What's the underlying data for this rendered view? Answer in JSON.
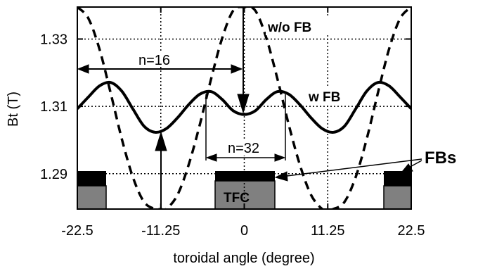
{
  "chart_data": {
    "type": "line",
    "xlabel": "toroidal angle (degree)",
    "ylabel": "Bt (T)",
    "xlim": [
      -22.5,
      22.5
    ],
    "ylim": [
      1.2795,
      1.3395
    ],
    "x_ticks": [
      -22.5,
      -11.25,
      0,
      11.25,
      22.5
    ],
    "x_tick_labels": [
      "-22.5",
      "-11.25",
      "0",
      "11.25",
      "22.5"
    ],
    "y_ticks": [
      1.29,
      1.31,
      1.33
    ],
    "y_tick_labels": [
      "1.29",
      "1.31",
      "1.33"
    ],
    "grid": true,
    "series": [
      {
        "name": "w/o FB",
        "style": "dashed",
        "color": "#000000",
        "x": [
          -22.5,
          -21.0,
          -19.5,
          -18.0,
          -16.5,
          -15.0,
          -13.5,
          -12.0,
          -11.25,
          -10.5,
          -9.0,
          -7.5,
          -6.0,
          -4.5,
          -3.0,
          -1.5,
          0.0,
          1.5,
          3.0,
          4.5,
          6.0,
          7.5,
          9.0,
          10.5,
          11.25,
          12.0,
          13.5,
          15.0,
          16.5,
          18.0,
          19.5,
          21.0,
          22.5
        ],
        "y": [
          1.3395,
          1.3361,
          1.3269,
          1.3139,
          1.3003,
          1.2889,
          1.2816,
          1.2795,
          1.2795,
          1.2795,
          1.2837,
          1.2926,
          1.3045,
          1.3179,
          1.3301,
          1.3384,
          1.3395,
          1.3384,
          1.3301,
          1.3179,
          1.3045,
          1.2926,
          1.2837,
          1.2795,
          1.2795,
          1.2795,
          1.2816,
          1.2889,
          1.3003,
          1.3139,
          1.3269,
          1.3361,
          1.3395
        ]
      },
      {
        "name": "w FB",
        "style": "solid",
        "color": "#000000",
        "x": [
          -22.5,
          -21.0,
          -19.5,
          -18.0,
          -16.5,
          -15.0,
          -13.5,
          -12.0,
          -10.5,
          -9.0,
          -7.5,
          -6.0,
          -4.5,
          -3.0,
          -1.5,
          0.0,
          1.5,
          3.0,
          4.5,
          6.0,
          7.5,
          9.0,
          10.5,
          12.0,
          13.5,
          15.0,
          16.5,
          18.0,
          19.5,
          21.0,
          22.5
        ],
        "y": [
          1.3093,
          1.3128,
          1.3161,
          1.3171,
          1.3145,
          1.3092,
          1.3041,
          1.3023,
          1.3034,
          1.3066,
          1.3105,
          1.3136,
          1.3144,
          1.3121,
          1.3087,
          1.3076,
          1.3087,
          1.3121,
          1.3144,
          1.3136,
          1.3105,
          1.3066,
          1.3034,
          1.3023,
          1.3041,
          1.3092,
          1.3145,
          1.3171,
          1.3161,
          1.3128,
          1.3093
        ]
      }
    ],
    "annotations": {
      "wo_fb": "w/o FB",
      "w_fb": "w FB",
      "n16": "n=16",
      "n32": "n=32",
      "fbs": "FBs",
      "tfc": "TFC"
    }
  }
}
